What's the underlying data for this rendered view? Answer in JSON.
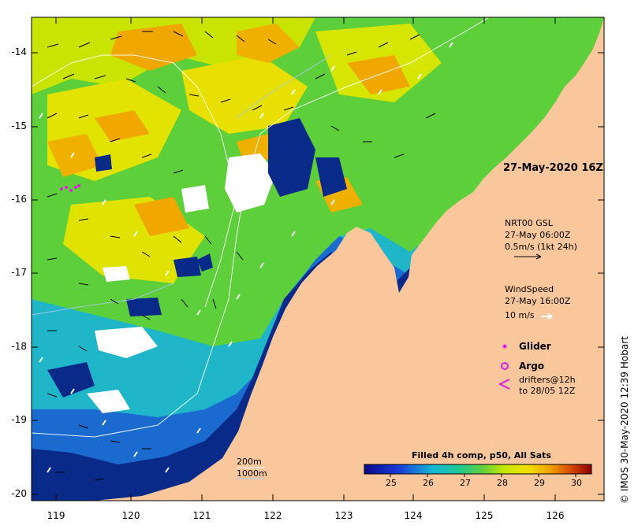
{
  "map": {
    "lon_ticks": [
      "119",
      "120",
      "121",
      "122",
      "123",
      "124",
      "125",
      "126"
    ],
    "lat_ticks": [
      "-14",
      "-15",
      "-16",
      "-17",
      "-18",
      "-19",
      "-20"
    ],
    "date_label": "27-May-2020 16Z",
    "current_legend": {
      "line1": "NRT00 GSL",
      "line2": "27-May 06:00Z",
      "line3": "0.5m/s (1kt 24h)"
    },
    "wind_legend": {
      "line1": "WindSpeed",
      "line2": "27-May 16:00Z",
      "line3": "10 m/s"
    },
    "symbols": {
      "glider": "Glider",
      "argo": "Argo",
      "drifters1": "drifters@12h",
      "drifters2": "to 28/05 12Z"
    },
    "isobaths": {
      "a": "200m",
      "b": "1000m"
    },
    "colorbar": {
      "title": "Filled 4h comp, p50, All Sats",
      "ticks": [
        "25",
        "26",
        "27",
        "28",
        "29",
        "30"
      ],
      "range": [
        24.4,
        30.5
      ]
    },
    "credit": "© IMOS 30-May-2020 12:39 Hobart",
    "colors": {
      "land": "#f9c79b",
      "deep_blue": "#0a2a8a",
      "cyan": "#1fb6c9",
      "green": "#3cc43c",
      "yellow": "#e4e800",
      "orange": "#f0a800"
    }
  }
}
